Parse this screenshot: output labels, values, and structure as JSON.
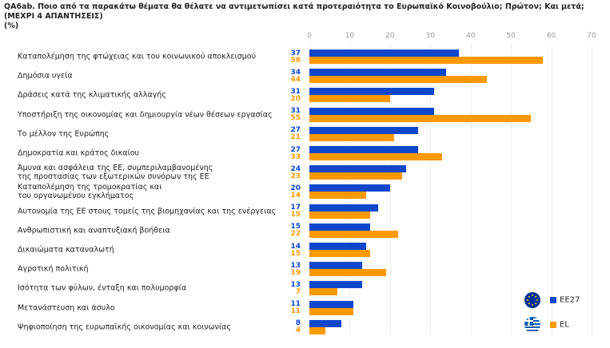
{
  "chart_data": {
    "type": "bar",
    "orientation": "horizontal",
    "title": "QA6ab. Ποιο από τα παρακάτω θέματα θα θέλατε να αντιμετωπίσει κατά προτεραιότητα το Ευρωπαϊκό Κοινοβούλιο; Πρώτον; Και μετά;\n(ΜΕΧΡΙ 4 ΑΠΑΝΤΗΣΕΙΣ)",
    "subtitle": "(%)",
    "categories": [
      "Καταπολέμηση της φτώχειας και του κοινωνικού αποκλεισμού",
      "Δημόσια υγεία",
      "Δράσεις κατά της κλιματικής αλλαγής",
      "Υποστήριξη της οικονομίας και δημιουργία νέων θέσεων εργασίας",
      "Το μέλλον της Ευρώπης",
      "Δημοκρατία και κράτος δικαίου",
      "Άμυνα και ασφάλεια της ΕΕ, συμπεριλαμβανομένης\nτης προστασίας των εξωτερικών συνόρων της ΕΕ",
      "Καταπολέμηση της τρομοκρατίας και\nτου οργανωμένου εγκλήματος",
      "Αυτονομία της ΕΕ στους τομείς της βιομηχανίας και της ενέργειας",
      "Ανθρωπιστική και αναπτυξιακή βοήθεια",
      "Δικαιώματα καταναλωτή",
      "Αγροτική πολιτική",
      "Ισότητα των φύλων, ένταξη και πολυμορφία",
      "Μετανάστευση και άσυλο",
      "Ψηφιοποίηση της ευρωπαϊκής οικονομίας και κοινωνίας"
    ],
    "series": [
      {
        "name": "EE27",
        "color": "#0e47cb",
        "values": [
          37,
          34,
          31,
          31,
          27,
          27,
          24,
          20,
          17,
          15,
          14,
          13,
          13,
          11,
          8
        ]
      },
      {
        "name": "EL",
        "color": "#ff9900",
        "values": [
          58,
          44,
          20,
          55,
          21,
          33,
          23,
          14,
          15,
          22,
          15,
          19,
          7,
          11,
          4
        ]
      }
    ],
    "xlim": [
      0,
      70
    ],
    "xticks": [
      0,
      10,
      20,
      30,
      40,
      50,
      60,
      70
    ],
    "grid": true
  }
}
